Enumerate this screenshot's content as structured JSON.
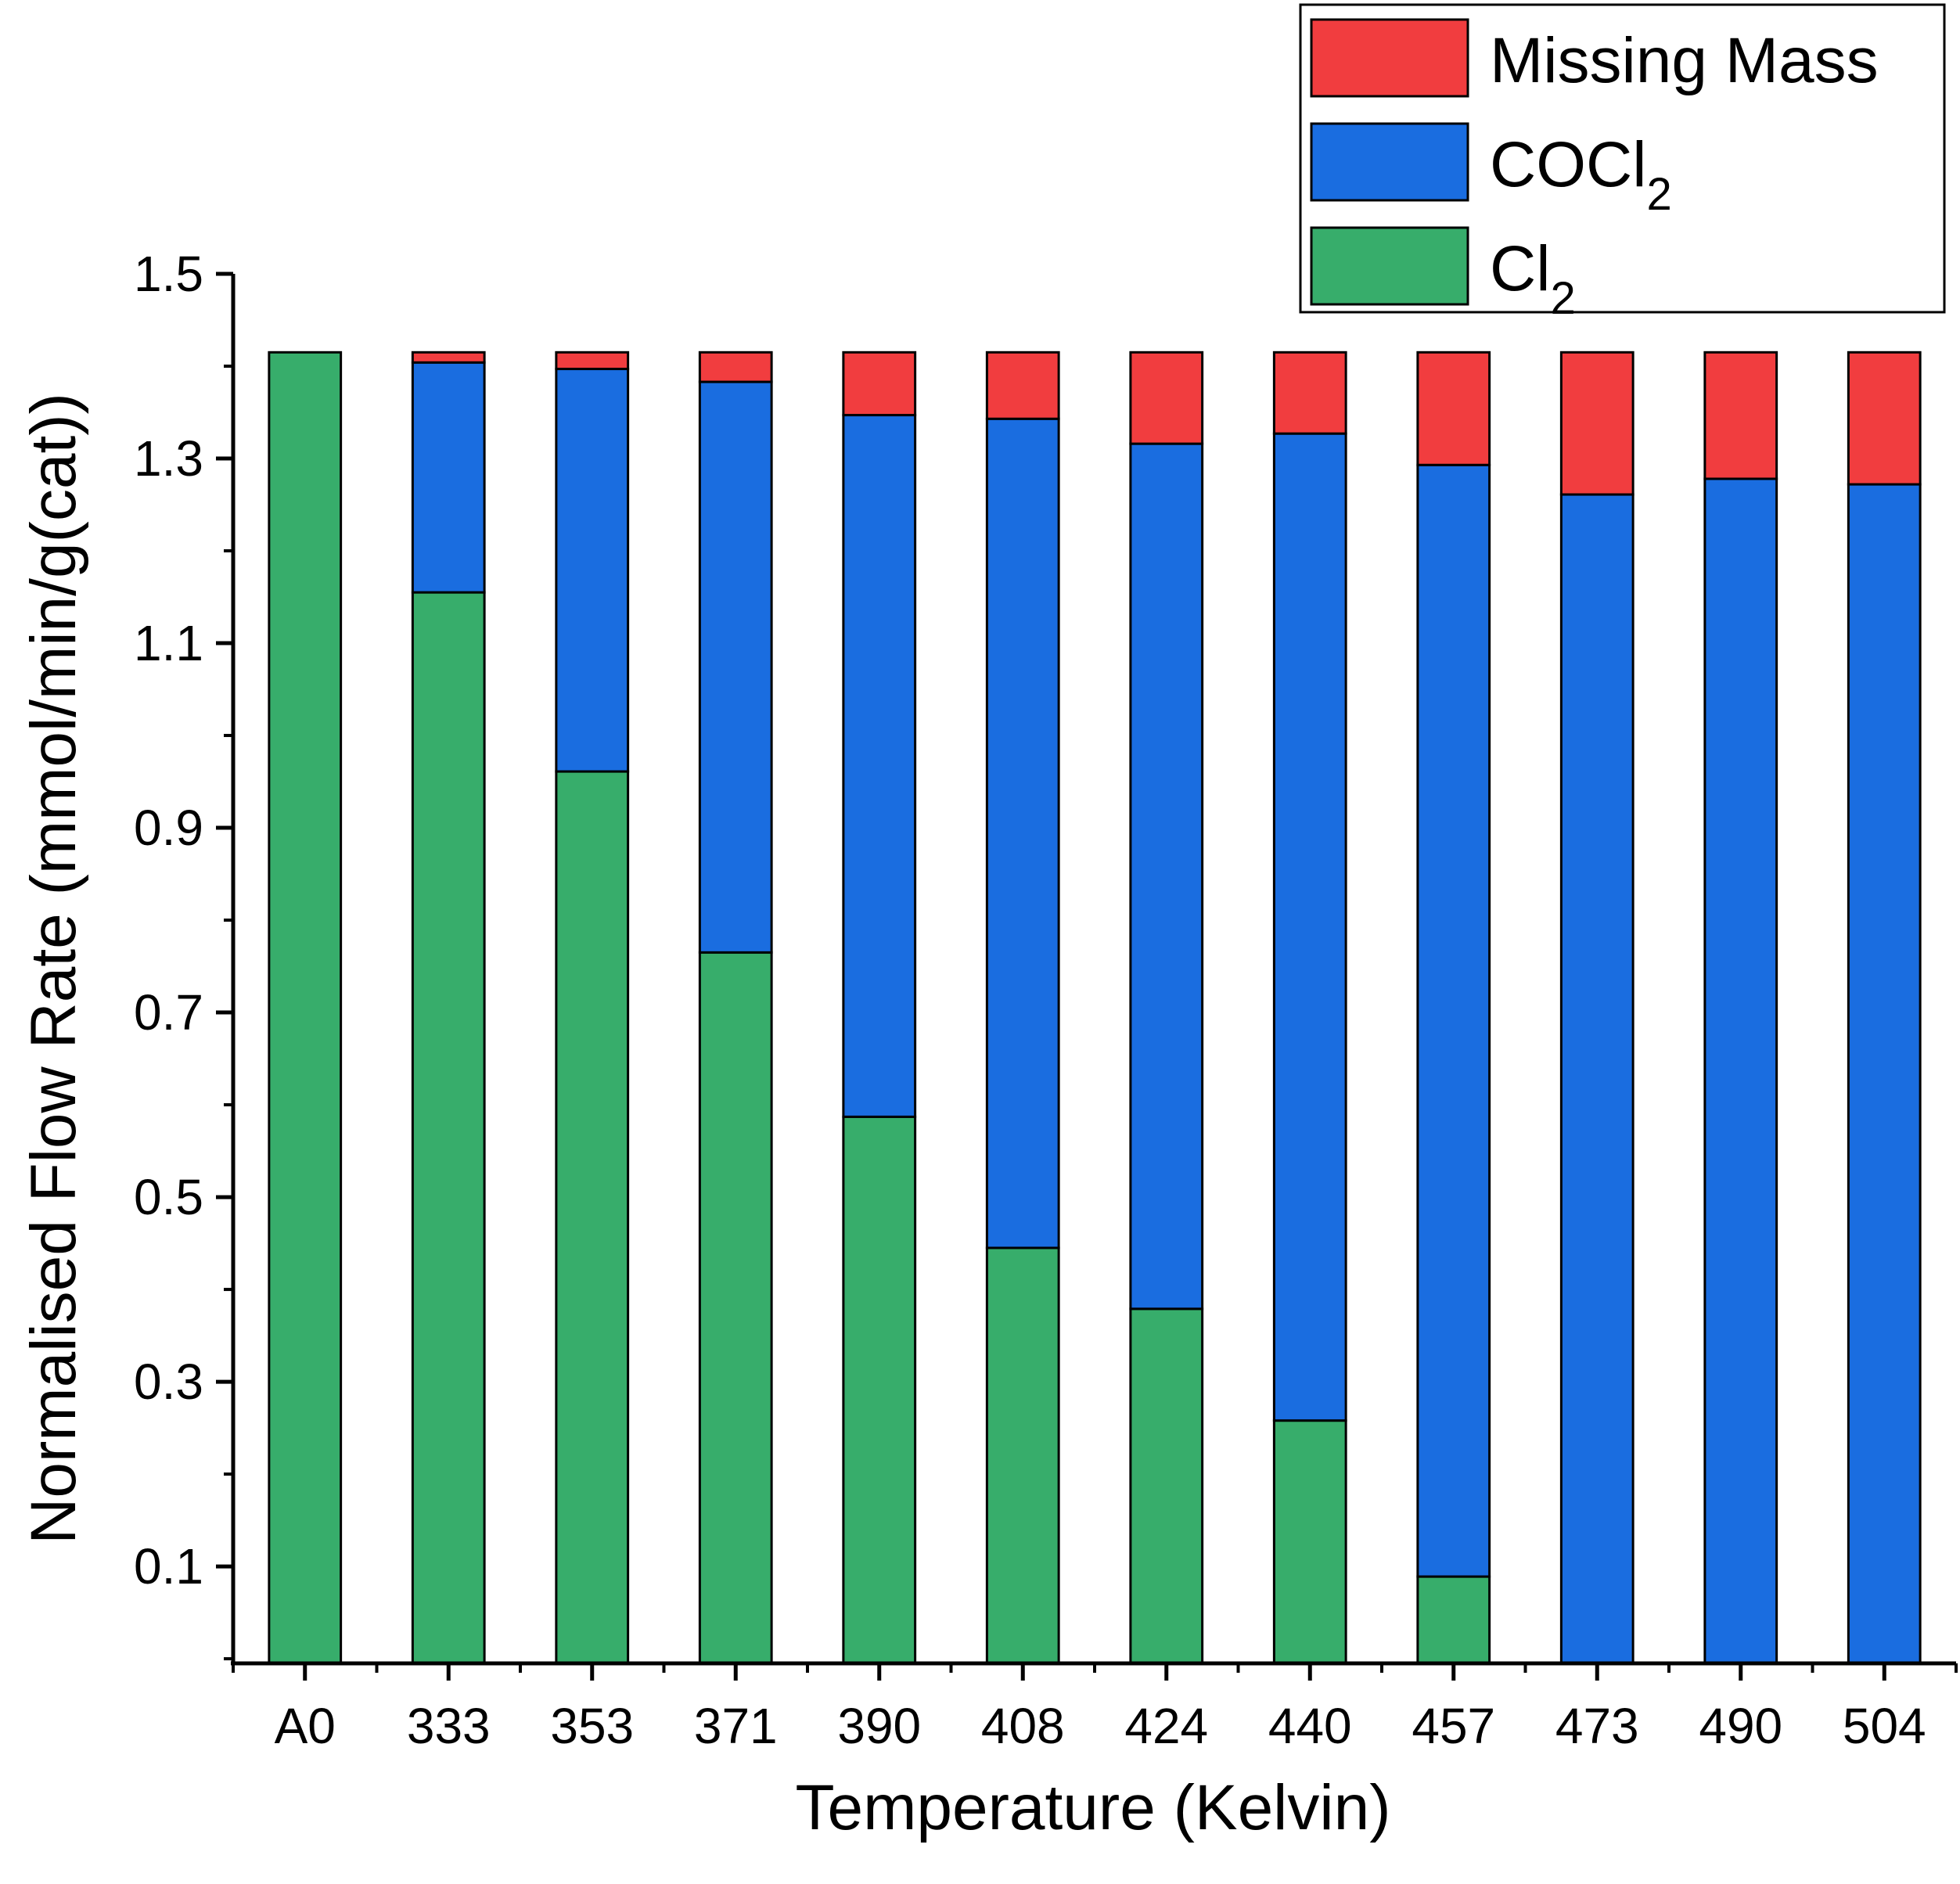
{
  "chart_data": {
    "type": "bar",
    "stacked": true,
    "categories": [
      "A0",
      "333",
      "353",
      "371",
      "390",
      "408",
      "424",
      "440",
      "457",
      "473",
      "490",
      "504"
    ],
    "series": [
      {
        "name": "Cl2",
        "name_main": "Cl",
        "name_sub": "2",
        "color": "#37ad6b",
        "values": [
          1.42,
          1.16,
          0.966,
          0.77,
          0.592,
          0.45,
          0.384,
          0.263,
          0.094,
          0,
          0,
          0
        ]
      },
      {
        "name": "COCl2",
        "name_main": "COCl",
        "name_sub": "2",
        "color": "#1a6de0",
        "values": [
          0,
          0.249,
          0.436,
          0.618,
          0.76,
          0.898,
          0.937,
          1.069,
          1.204,
          1.266,
          1.283,
          1.277
        ]
      },
      {
        "name": "Missing Mass",
        "name_main": "Missing Mass",
        "name_sub": "",
        "color": "#f13d3f",
        "values": [
          0,
          0.011,
          0.018,
          0.032,
          0.068,
          0.072,
          0.099,
          0.088,
          0.122,
          0.154,
          0.137,
          0.143
        ]
      }
    ],
    "legend_order": [
      2,
      1,
      0
    ],
    "legend_position": "top-right",
    "xlabel": "Temperature (Kelvin)",
    "ylabel": "Normalised Flow Rate (mmol/min/g(cat))",
    "ylim": [
      -0.005,
      1.5
    ],
    "yticks": [
      0.1,
      0.3,
      0.5,
      0.7,
      0.9,
      1.1,
      1.3,
      1.5
    ],
    "ytick_labels": [
      "0.1",
      "0.3",
      "0.5",
      "0.7",
      "0.9",
      "1.1",
      "1.3",
      "1.5"
    ],
    "grid": false
  }
}
